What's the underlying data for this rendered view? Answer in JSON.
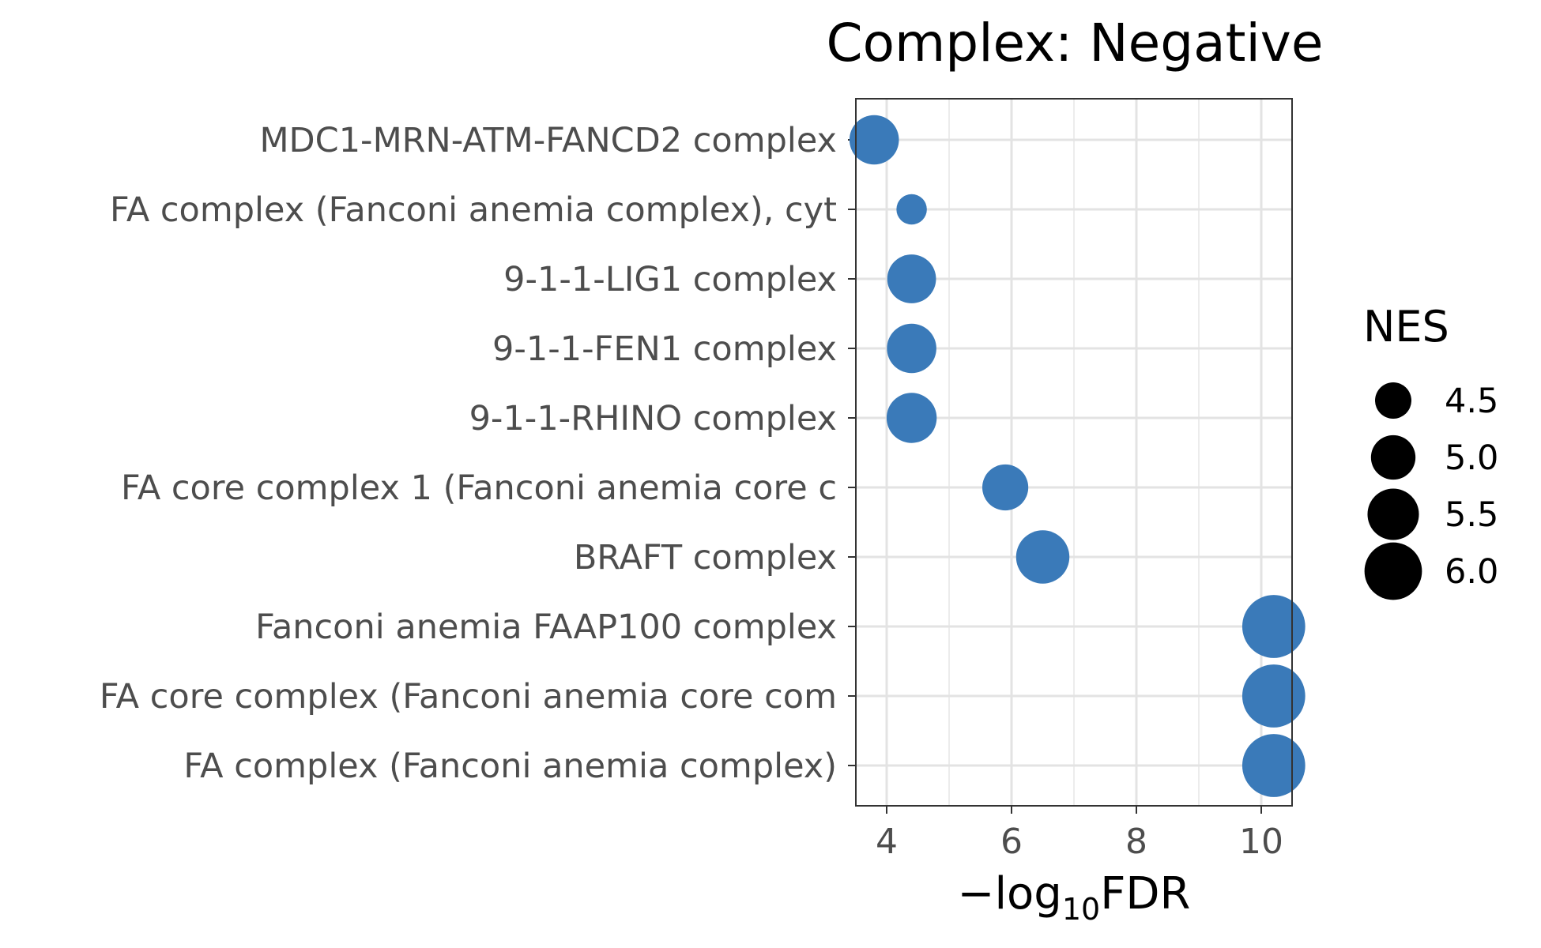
{
  "chart_data": {
    "type": "scatter",
    "title": "Complex: Negative",
    "xlabel": "−log10FDR",
    "xlabel_parts": {
      "prefix": "−log",
      "subscript": "10",
      "suffix": "FDR"
    },
    "ylabel": "",
    "xlim": [
      3.5,
      10.5
    ],
    "xticks": [
      4,
      6,
      8,
      10
    ],
    "xtick_labels": [
      "4",
      "6",
      "8",
      "10"
    ],
    "grid": true,
    "categories": [
      "MDC1-MRN-ATM-FANCD2 complex",
      "FA complex (Fanconi anemia complex), cyt",
      "9-1-1-LIG1 complex",
      "9-1-1-FEN1 complex",
      "9-1-1-RHINO complex",
      "FA core complex 1 (Fanconi anemia core c",
      "BRAFT complex",
      "Fanconi anemia FAAP100 complex",
      "FA core complex (Fanconi anemia core com",
      "FA complex (Fanconi anemia complex)"
    ],
    "series": [
      {
        "x": [
          3.8,
          4.4,
          4.4,
          4.4,
          4.4,
          5.9,
          6.5,
          10.2,
          10.2,
          10.2
        ],
        "nes": [
          5.35,
          4.2,
          5.3,
          5.35,
          5.4,
          5.1,
          5.65,
          6.5,
          6.5,
          6.5
        ]
      }
    ],
    "point_color": "#3a7ab9",
    "legend": {
      "title": "NES",
      "position": "right",
      "values": [
        4.5,
        5.0,
        5.5,
        6.0
      ],
      "labels": [
        "4.5",
        "5.0",
        "5.5",
        "6.0"
      ]
    }
  }
}
